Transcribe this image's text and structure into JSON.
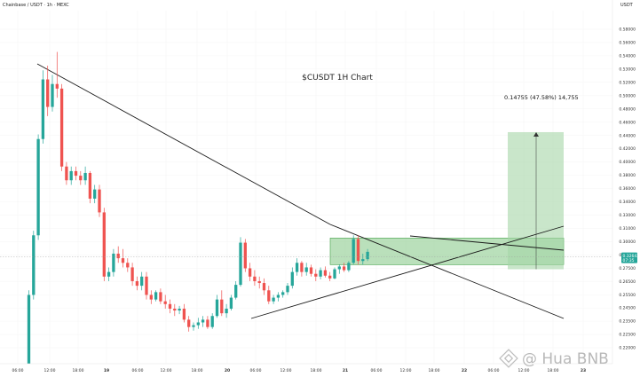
{
  "header": {
    "instrument": "Chainbase / USDT · 1h · MEXC",
    "currency": "USDT"
  },
  "watermark": "@ Hua BNB",
  "chart_data": {
    "type": "candlestick",
    "title": "$CUSDT 1H Chart",
    "ylim": [
      0.21,
      0.595
    ],
    "y_ticks": [
      "0.58000",
      "0.56000",
      "0.54000",
      "0.53000",
      "0.52000",
      "0.50000",
      "0.48000",
      "0.46000",
      "0.44000",
      "0.42000",
      "0.40000",
      "0.38000",
      "0.36000",
      "0.34000",
      "0.33000",
      "0.31000",
      "0.30000",
      "0.28500",
      "0.27500",
      "0.26500",
      "0.25500",
      "0.24500",
      "0.23500",
      "0.22500",
      "0.22000"
    ],
    "x_ticks": [
      "06:00",
      "12:00",
      "18:00",
      "19",
      "06:00",
      "12:00",
      "18:00",
      "20",
      "06:00",
      "12:00",
      "18:00",
      "21",
      "06:00",
      "12:00",
      "18:00",
      "22",
      "06:00",
      "12:00",
      "18:00",
      "23"
    ],
    "last_price": {
      "value": 0.3264,
      "label": "0.32642",
      "countdown": "07:35"
    },
    "candles": [
      {
        "o": 0.205,
        "h": 0.29,
        "l": 0.2,
        "c": 0.285
      },
      {
        "o": 0.285,
        "h": 0.355,
        "l": 0.28,
        "c": 0.35
      },
      {
        "o": 0.35,
        "h": 0.46,
        "l": 0.345,
        "c": 0.455
      },
      {
        "o": 0.455,
        "h": 0.53,
        "l": 0.45,
        "c": 0.52
      },
      {
        "o": 0.52,
        "h": 0.535,
        "l": 0.48,
        "c": 0.49
      },
      {
        "o": 0.49,
        "h": 0.525,
        "l": 0.485,
        "c": 0.515
      },
      {
        "o": 0.515,
        "h": 0.55,
        "l": 0.5,
        "c": 0.51
      },
      {
        "o": 0.51,
        "h": 0.515,
        "l": 0.42,
        "c": 0.425
      },
      {
        "o": 0.425,
        "h": 0.43,
        "l": 0.405,
        "c": 0.41
      },
      {
        "o": 0.41,
        "h": 0.425,
        "l": 0.405,
        "c": 0.42
      },
      {
        "o": 0.42,
        "h": 0.425,
        "l": 0.41,
        "c": 0.415
      },
      {
        "o": 0.415,
        "h": 0.42,
        "l": 0.405,
        "c": 0.41
      },
      {
        "o": 0.41,
        "h": 0.425,
        "l": 0.405,
        "c": 0.418
      },
      {
        "o": 0.418,
        "h": 0.42,
        "l": 0.385,
        "c": 0.39
      },
      {
        "o": 0.39,
        "h": 0.405,
        "l": 0.385,
        "c": 0.4
      },
      {
        "o": 0.4,
        "h": 0.405,
        "l": 0.37,
        "c": 0.375
      },
      {
        "o": 0.375,
        "h": 0.38,
        "l": 0.3,
        "c": 0.305
      },
      {
        "o": 0.305,
        "h": 0.315,
        "l": 0.3,
        "c": 0.31
      },
      {
        "o": 0.31,
        "h": 0.335,
        "l": 0.305,
        "c": 0.33
      },
      {
        "o": 0.33,
        "h": 0.338,
        "l": 0.32,
        "c": 0.325
      },
      {
        "o": 0.325,
        "h": 0.335,
        "l": 0.315,
        "c": 0.32
      },
      {
        "o": 0.32,
        "h": 0.325,
        "l": 0.31,
        "c": 0.315
      },
      {
        "o": 0.315,
        "h": 0.32,
        "l": 0.295,
        "c": 0.3
      },
      {
        "o": 0.3,
        "h": 0.305,
        "l": 0.29,
        "c": 0.295
      },
      {
        "o": 0.295,
        "h": 0.31,
        "l": 0.29,
        "c": 0.305
      },
      {
        "o": 0.305,
        "h": 0.31,
        "l": 0.28,
        "c": 0.285
      },
      {
        "o": 0.285,
        "h": 0.29,
        "l": 0.275,
        "c": 0.28
      },
      {
        "o": 0.28,
        "h": 0.29,
        "l": 0.278,
        "c": 0.288
      },
      {
        "o": 0.288,
        "h": 0.292,
        "l": 0.275,
        "c": 0.278
      },
      {
        "o": 0.278,
        "h": 0.285,
        "l": 0.27,
        "c": 0.275
      },
      {
        "o": 0.275,
        "h": 0.28,
        "l": 0.265,
        "c": 0.27
      },
      {
        "o": 0.27,
        "h": 0.275,
        "l": 0.262,
        "c": 0.268
      },
      {
        "o": 0.268,
        "h": 0.273,
        "l": 0.264,
        "c": 0.27
      },
      {
        "o": 0.27,
        "h": 0.275,
        "l": 0.255,
        "c": 0.258
      },
      {
        "o": 0.258,
        "h": 0.262,
        "l": 0.245,
        "c": 0.25
      },
      {
        "o": 0.25,
        "h": 0.255,
        "l": 0.246,
        "c": 0.252
      },
      {
        "o": 0.252,
        "h": 0.26,
        "l": 0.248,
        "c": 0.255
      },
      {
        "o": 0.255,
        "h": 0.262,
        "l": 0.25,
        "c": 0.258
      },
      {
        "o": 0.258,
        "h": 0.262,
        "l": 0.248,
        "c": 0.25
      },
      {
        "o": 0.25,
        "h": 0.265,
        "l": 0.248,
        "c": 0.262
      },
      {
        "o": 0.262,
        "h": 0.285,
        "l": 0.26,
        "c": 0.28
      },
      {
        "o": 0.28,
        "h": 0.29,
        "l": 0.262,
        "c": 0.265
      },
      {
        "o": 0.265,
        "h": 0.275,
        "l": 0.26,
        "c": 0.27
      },
      {
        "o": 0.27,
        "h": 0.285,
        "l": 0.268,
        "c": 0.282
      },
      {
        "o": 0.282,
        "h": 0.3,
        "l": 0.28,
        "c": 0.296
      },
      {
        "o": 0.296,
        "h": 0.348,
        "l": 0.294,
        "c": 0.342
      },
      {
        "o": 0.342,
        "h": 0.346,
        "l": 0.31,
        "c": 0.314
      },
      {
        "o": 0.314,
        "h": 0.32,
        "l": 0.3,
        "c": 0.305
      },
      {
        "o": 0.305,
        "h": 0.312,
        "l": 0.295,
        "c": 0.3
      },
      {
        "o": 0.3,
        "h": 0.305,
        "l": 0.292,
        "c": 0.298
      },
      {
        "o": 0.298,
        "h": 0.303,
        "l": 0.285,
        "c": 0.29
      },
      {
        "o": 0.29,
        "h": 0.295,
        "l": 0.275,
        "c": 0.278
      },
      {
        "o": 0.278,
        "h": 0.285,
        "l": 0.275,
        "c": 0.282
      },
      {
        "o": 0.282,
        "h": 0.288,
        "l": 0.278,
        "c": 0.285
      },
      {
        "o": 0.285,
        "h": 0.29,
        "l": 0.282,
        "c": 0.288
      },
      {
        "o": 0.288,
        "h": 0.298,
        "l": 0.285,
        "c": 0.295
      },
      {
        "o": 0.295,
        "h": 0.315,
        "l": 0.292,
        "c": 0.31
      },
      {
        "o": 0.31,
        "h": 0.325,
        "l": 0.306,
        "c": 0.32
      },
      {
        "o": 0.32,
        "h": 0.322,
        "l": 0.305,
        "c": 0.31
      },
      {
        "o": 0.31,
        "h": 0.32,
        "l": 0.306,
        "c": 0.315
      },
      {
        "o": 0.315,
        "h": 0.318,
        "l": 0.305,
        "c": 0.308
      },
      {
        "o": 0.308,
        "h": 0.313,
        "l": 0.3,
        "c": 0.305
      },
      {
        "o": 0.305,
        "h": 0.315,
        "l": 0.302,
        "c": 0.312
      },
      {
        "o": 0.312,
        "h": 0.316,
        "l": 0.304,
        "c": 0.306
      },
      {
        "o": 0.306,
        "h": 0.31,
        "l": 0.3,
        "c": 0.303
      },
      {
        "o": 0.303,
        "h": 0.315,
        "l": 0.302,
        "c": 0.313
      },
      {
        "o": 0.313,
        "h": 0.318,
        "l": 0.308,
        "c": 0.316
      },
      {
        "o": 0.316,
        "h": 0.32,
        "l": 0.31,
        "c": 0.312
      },
      {
        "o": 0.312,
        "h": 0.322,
        "l": 0.31,
        "c": 0.32
      },
      {
        "o": 0.32,
        "h": 0.35,
        "l": 0.318,
        "c": 0.346
      },
      {
        "o": 0.346,
        "h": 0.35,
        "l": 0.318,
        "c": 0.322
      },
      {
        "o": 0.322,
        "h": 0.33,
        "l": 0.318,
        "c": 0.324
      },
      {
        "o": 0.324,
        "h": 0.335,
        "l": 0.322,
        "c": 0.332
      }
    ],
    "annotations": {
      "target_label": "0.14755 (47.58%) 14,755",
      "range_box": {
        "y0": 0.318,
        "y1": 0.347
      },
      "target_box": {
        "y0": 0.313,
        "y1": 0.4625
      }
    }
  }
}
